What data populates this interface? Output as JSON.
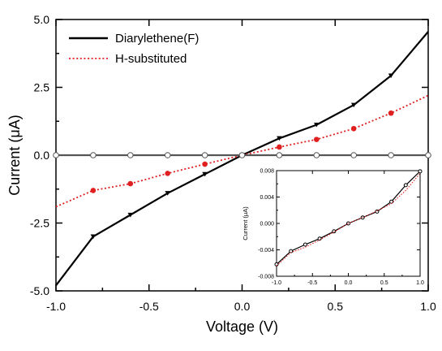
{
  "chart_data": [
    {
      "id": "main",
      "type": "line",
      "xlabel": "Voltage (V)",
      "ylabel": "Current (μA)",
      "xlim": [
        -1.0,
        1.0
      ],
      "ylim": [
        -5.0,
        5.0
      ],
      "xticks": [
        -1.0,
        -0.5,
        0.0,
        0.5,
        1.0
      ],
      "xtick_labels": [
        "-1.0",
        "-0.5",
        "0.0",
        "0.5",
        "1.0"
      ],
      "yticks": [
        -5.0,
        -2.5,
        0.0,
        2.5,
        5.0
      ],
      "ytick_labels": [
        "-5.0",
        "-2.5",
        "0.0",
        "2.5",
        "5.0"
      ],
      "legend_position": "top-left",
      "series": [
        {
          "name": "Diarylethene(F)",
          "color": "#000000",
          "line_style": "solid",
          "marker": "down-triangle",
          "x": [
            -1.0,
            -0.8,
            -0.6,
            -0.4,
            -0.2,
            0.0,
            0.2,
            0.4,
            0.6,
            0.8,
            1.0
          ],
          "y": [
            -4.8,
            -3.0,
            -2.2,
            -1.4,
            -0.7,
            0.0,
            0.62,
            1.12,
            1.85,
            2.93,
            4.55
          ]
        },
        {
          "name": "H-substituted",
          "color": "#e02020",
          "line_style": "dotted",
          "marker": "circle",
          "x": [
            -1.0,
            -0.8,
            -0.6,
            -0.4,
            -0.2,
            0.0,
            0.2,
            0.4,
            0.6,
            0.8,
            1.0
          ],
          "y": [
            -1.9,
            -1.3,
            -1.05,
            -0.67,
            -0.33,
            0.0,
            0.3,
            0.58,
            0.98,
            1.55,
            2.2
          ]
        },
        {
          "name": "",
          "color": "#555555",
          "line_style": "solid",
          "marker": "open-circle",
          "x": [
            -1.0,
            -0.8,
            -0.6,
            -0.4,
            -0.2,
            0.0,
            0.2,
            0.4,
            0.6,
            0.8,
            1.0
          ],
          "y": [
            0,
            0,
            0,
            0,
            0,
            0,
            0,
            0,
            0,
            0,
            0
          ]
        }
      ]
    },
    {
      "id": "inset",
      "type": "line",
      "xlabel": "",
      "ylabel": "Current (μA)",
      "xlim": [
        -1.0,
        1.0
      ],
      "ylim": [
        -0.008,
        0.008
      ],
      "xticks": [
        -1.0,
        -0.5,
        0.0,
        0.5,
        1.0
      ],
      "xtick_labels": [
        "-1.0",
        "-0.5",
        "0.0",
        "0.5",
        "1.0"
      ],
      "yticks": [
        -0.008,
        -0.004,
        0.0,
        0.004,
        0.008
      ],
      "ytick_labels": [
        "-0.008",
        "-0.004",
        "0.000",
        "0.004",
        "0.008"
      ],
      "series": [
        {
          "name": "",
          "color": "#000000",
          "line_style": "solid",
          "marker": "open-circle",
          "x": [
            -1.0,
            -0.8,
            -0.6,
            -0.4,
            -0.2,
            0.0,
            0.2,
            0.4,
            0.6,
            0.8,
            1.0
          ],
          "y": [
            -0.0062,
            -0.0042,
            -0.0032,
            -0.0023,
            -0.0012,
            0.0,
            0.0009,
            0.0018,
            0.0033,
            0.0058,
            0.0079
          ]
        },
        {
          "name": "",
          "color": "#e02020",
          "line_style": "dotted",
          "marker": "none",
          "x": [
            -1.0,
            -0.8,
            -0.6,
            -0.4,
            -0.2,
            0.0,
            0.2,
            0.4,
            0.6,
            0.8,
            1.0
          ],
          "y": [
            -0.0064,
            -0.0044,
            -0.0036,
            -0.0025,
            -0.0013,
            0.0,
            0.0009,
            0.0019,
            0.003,
            0.005,
            0.0076
          ]
        }
      ]
    }
  ]
}
